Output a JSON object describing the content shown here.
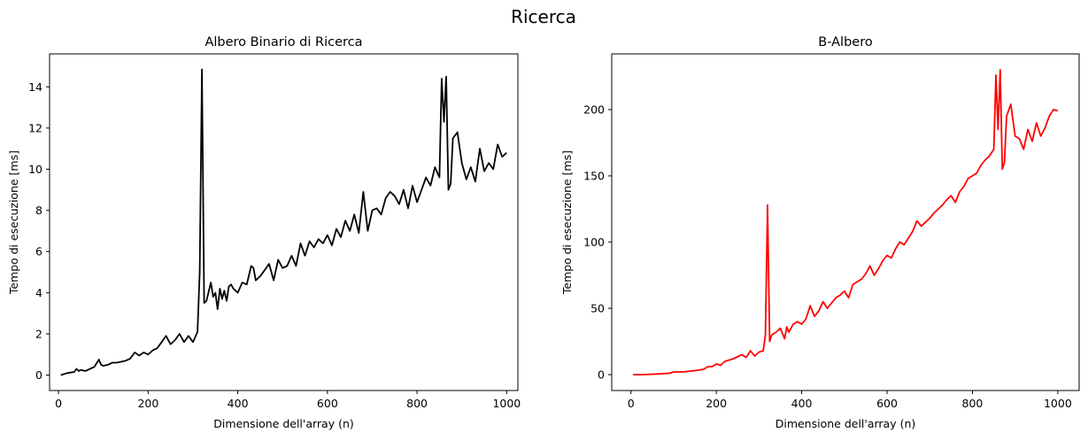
{
  "suptitle": "Ricerca",
  "chart_data": [
    {
      "type": "line",
      "title": "Albero Binario di Ricerca",
      "xlabel": "Dimensione dell'array (n)",
      "ylabel": "Tempo di esecuzione [ms]",
      "xlim": [
        -20,
        1025
      ],
      "ylim": [
        -0.75,
        15.6
      ],
      "xticks": [
        0,
        200,
        400,
        600,
        800,
        1000
      ],
      "yticks": [
        0,
        2,
        4,
        6,
        8,
        10,
        12,
        14
      ],
      "color": "#000000",
      "series": [
        {
          "x": [
            5,
            20,
            35,
            40,
            45,
            50,
            60,
            70,
            80,
            90,
            95,
            100,
            110,
            120,
            130,
            140,
            150,
            160,
            170,
            180,
            190,
            200,
            210,
            220,
            230,
            240,
            245,
            250,
            260,
            270,
            280,
            290,
            300,
            310,
            315,
            320,
            325,
            330,
            340,
            345,
            350,
            355,
            360,
            365,
            370,
            375,
            380,
            385,
            390,
            400,
            410,
            420,
            430,
            435,
            440,
            450,
            460,
            470,
            480,
            490,
            500,
            510,
            520,
            530,
            540,
            550,
            560,
            570,
            580,
            590,
            600,
            610,
            620,
            630,
            640,
            650,
            660,
            670,
            680,
            690,
            700,
            710,
            720,
            730,
            740,
            750,
            760,
            770,
            780,
            790,
            800,
            810,
            820,
            830,
            840,
            850,
            855,
            860,
            865,
            870,
            875,
            880,
            890,
            900,
            910,
            920,
            930,
            940,
            950,
            960,
            970,
            980,
            990,
            1000
          ],
          "y": [
            0.0,
            0.1,
            0.15,
            0.3,
            0.2,
            0.25,
            0.2,
            0.3,
            0.4,
            0.75,
            0.5,
            0.45,
            0.5,
            0.6,
            0.6,
            0.65,
            0.7,
            0.8,
            1.1,
            0.95,
            1.1,
            1.0,
            1.2,
            1.3,
            1.6,
            1.9,
            1.7,
            1.5,
            1.7,
            2.0,
            1.6,
            1.9,
            1.6,
            2.1,
            5.0,
            14.85,
            3.5,
            3.6,
            4.5,
            3.8,
            4.0,
            3.2,
            4.2,
            3.7,
            4.1,
            3.6,
            4.3,
            4.4,
            4.2,
            4.0,
            4.5,
            4.4,
            5.3,
            5.2,
            4.6,
            4.8,
            5.1,
            5.4,
            4.6,
            5.6,
            5.2,
            5.3,
            5.8,
            5.3,
            6.4,
            5.8,
            6.5,
            6.2,
            6.6,
            6.4,
            6.8,
            6.3,
            7.1,
            6.7,
            7.5,
            7.0,
            7.8,
            6.9,
            8.9,
            7.0,
            8.0,
            8.1,
            7.8,
            8.6,
            8.9,
            8.7,
            8.3,
            9.0,
            8.1,
            9.2,
            8.4,
            9.0,
            9.6,
            9.2,
            10.1,
            9.6,
            14.4,
            12.3,
            14.5,
            9.0,
            9.3,
            11.5,
            11.8,
            10.3,
            9.5,
            10.1,
            9.4,
            11.0,
            9.9,
            10.3,
            10.0,
            11.2,
            10.6,
            10.8
          ]
        }
      ]
    },
    {
      "type": "line",
      "title": "B-Albero",
      "xlabel": "Dimensione dell'array (n)",
      "ylabel": "Tempo di esecuzione [ms]",
      "xlim": [
        -45,
        1050
      ],
      "ylim": [
        -12,
        242
      ],
      "xticks": [
        0,
        200,
        400,
        600,
        800,
        1000
      ],
      "yticks": [
        0,
        50,
        100,
        150,
        200
      ],
      "color": "#ff0000",
      "series": [
        {
          "x": [
            5,
            30,
            60,
            90,
            100,
            120,
            150,
            170,
            180,
            190,
            200,
            210,
            220,
            240,
            260,
            270,
            280,
            290,
            300,
            310,
            315,
            320,
            325,
            330,
            340,
            350,
            360,
            365,
            370,
            380,
            390,
            400,
            410,
            420,
            430,
            440,
            450,
            460,
            470,
            480,
            490,
            500,
            510,
            520,
            530,
            540,
            550,
            560,
            570,
            580,
            590,
            600,
            610,
            620,
            630,
            640,
            650,
            660,
            670,
            680,
            690,
            700,
            710,
            720,
            730,
            740,
            750,
            760,
            770,
            780,
            790,
            800,
            810,
            820,
            830,
            840,
            850,
            855,
            860,
            865,
            870,
            875,
            880,
            890,
            900,
            910,
            920,
            930,
            940,
            950,
            960,
            970,
            980,
            990,
            1000
          ],
          "y": [
            0,
            0,
            0.5,
            1,
            2,
            2,
            3,
            4,
            6,
            6,
            8,
            7,
            10,
            12,
            15,
            13,
            18,
            14,
            17,
            18,
            30,
            128,
            25,
            30,
            32,
            35,
            27,
            36,
            32,
            38,
            40,
            38,
            42,
            52,
            44,
            48,
            55,
            50,
            54,
            58,
            60,
            63,
            58,
            68,
            70,
            72,
            76,
            82,
            75,
            80,
            86,
            90,
            88,
            95,
            100,
            98,
            103,
            108,
            116,
            112,
            115,
            118,
            122,
            125,
            128,
            132,
            135,
            130,
            138,
            142,
            148,
            150,
            152,
            158,
            162,
            165,
            170,
            226,
            185,
            230,
            155,
            160,
            195,
            204,
            180,
            178,
            170,
            185,
            176,
            190,
            180,
            186,
            195,
            200,
            199
          ]
        }
      ]
    }
  ]
}
